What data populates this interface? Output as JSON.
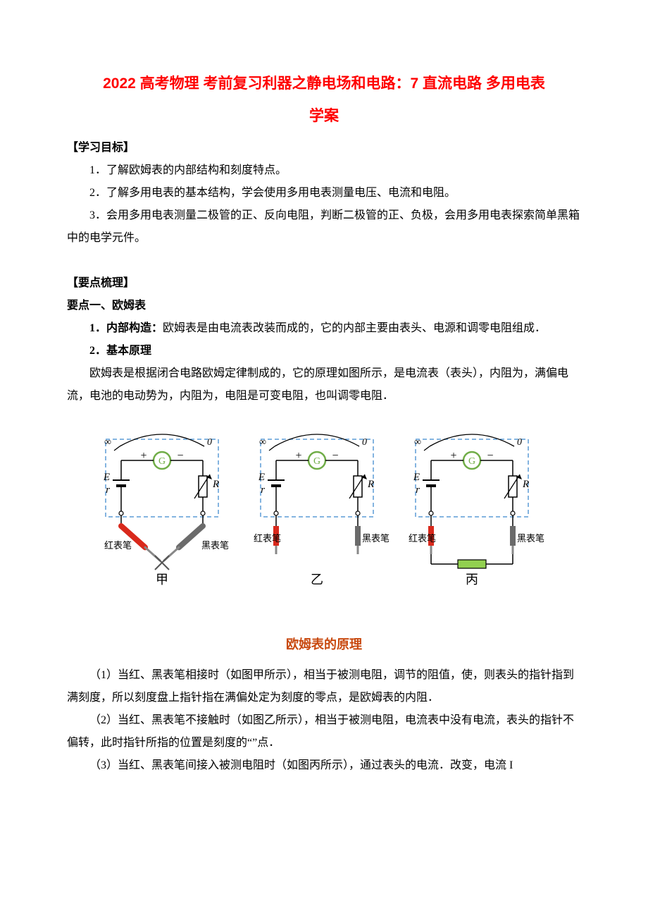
{
  "title": {
    "line1": "2022 高考物理 考前复习利器之静电场和电路：7 直流电路 多用电表",
    "line2": "学案"
  },
  "objectives": {
    "heading": "【学习目标】",
    "items": [
      "1．了解欧姆表的内部结构和刻度特点。",
      "2．了解多用电表的基本结构，学会使用多用电表测量电压、电流和电阻。",
      "3．会用多用电表测量二极管的正、反向电阻，判断二极管的正、负极，会用多用电表探索简单黑箱中的电学元件。"
    ]
  },
  "keypoints": {
    "heading": "【要点梳理】",
    "point1": {
      "heading": "要点一、欧姆表",
      "item1_label": "1．内部构造：",
      "item1_text": "欧姆表是由电流表改装而成的，它的内部主要由表头、电源和调零电阻组成．",
      "item2_label": "2．基本原理",
      "item2_text": "欧姆表是根据闭合电路欧姆定律制成的，它的原理如图所示，是电流表（表头），内阻为，满偏电流，电池的电动势为，内阻为，电阻是可变电阻，也叫调零电阻．"
    }
  },
  "figure": {
    "caption": "欧姆表的原理",
    "panels": [
      {
        "label": "甲",
        "probe_red": "红表笔",
        "probe_black": "黑表笔"
      },
      {
        "label": "乙",
        "probe_red": "红表笔",
        "probe_black": "黑表笔"
      },
      {
        "label": "丙",
        "probe_red": "红表笔",
        "probe_black": "黑表笔"
      }
    ],
    "colors": {
      "dashbox_stroke": "#5b9bd5",
      "probe_red": "#d9291c",
      "probe_black": "#6b6b6b",
      "galvo_green": "#70ad47",
      "resistor_green": "#92d050",
      "wire": "#000000",
      "label_text": "#000000"
    },
    "symbols": {
      "inf": "∞",
      "zero": "0",
      "G": "G",
      "E": "E",
      "r": "r",
      "R": "R",
      "plus": "+",
      "minus": "−"
    }
  },
  "explain": {
    "p1": "（1）当红、黑表笔相接时（如图甲所示），相当于被测电阻，调节的阻值，使，则表头的指针指到满刻度，所以刻度盘上指针指在满偏处定为刻度的零点，是欧姆表的内阻．",
    "p2": "（2）当红、黑表笔不接触时（如图乙所示），相当于被测电阻，电流表中没有电流，表头的指针不偏转，此时指针所指的位置是刻度的“”点．",
    "p3": "（3）当红、黑表笔间接入被测电阻时（如图丙所示），通过表头的电流．改变，电流 I"
  }
}
